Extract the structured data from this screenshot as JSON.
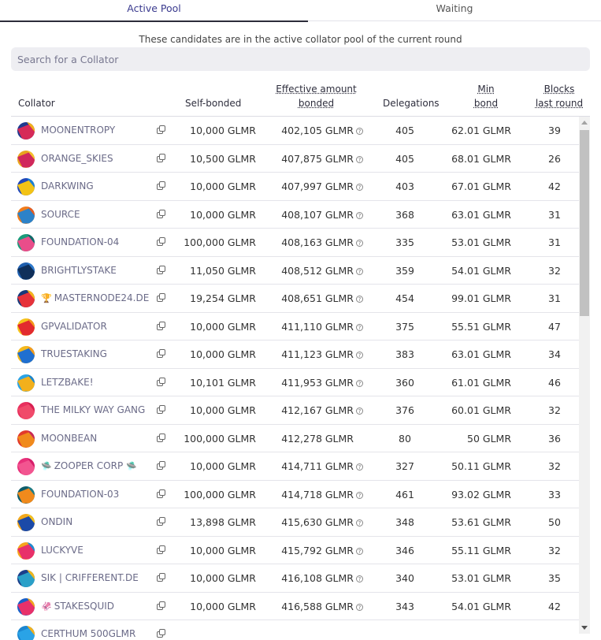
{
  "tabs": {
    "active": "Active Pool",
    "waiting": "Waiting"
  },
  "subtitle": "These candidates are in the active collator pool of the current round",
  "search": {
    "placeholder": "Search for a Collator",
    "value": ""
  },
  "columns": {
    "collator": "Collator",
    "self_bonded": "Self-bonded",
    "effective_1": "Effective amount",
    "effective_2": "bonded",
    "delegations": "Delegations",
    "min_1": "Min",
    "min_2": "bond",
    "blocks_1": "Blocks",
    "blocks_2": "last round"
  },
  "icons": {
    "copy": "copy-icon",
    "info": "info-icon",
    "scroll_up": "chevron-up-icon",
    "scroll_down": "chevron-down-icon"
  },
  "rows": [
    {
      "name": "MOONENTROPY",
      "self": "10,000 GLMR",
      "effective": "402,105 GLMR",
      "info": true,
      "delegations": "405",
      "min": "62.01 GLMR",
      "blocks": "39",
      "colors": [
        "#1f3a8f",
        "#d62a58",
        "#f0b21a"
      ]
    },
    {
      "name": "ORANGE_SKIES",
      "self": "10,500 GLMR",
      "effective": "407,875 GLMR",
      "info": true,
      "delegations": "405",
      "min": "68.01 GLMR",
      "blocks": "26",
      "colors": [
        "#e8a51e",
        "#d0285c",
        "#f5c52a"
      ]
    },
    {
      "name": "DARKWING",
      "self": "10,000 GLMR",
      "effective": "407,997 GLMR",
      "info": true,
      "delegations": "403",
      "min": "67.01 GLMR",
      "blocks": "42",
      "colors": [
        "#2148b8",
        "#f3c315",
        "#1a7fd6"
      ]
    },
    {
      "name": "SOURCE",
      "self": "10,000 GLMR",
      "effective": "408,107 GLMR",
      "info": true,
      "delegations": "368",
      "min": "63.01 GLMR",
      "blocks": "31",
      "colors": [
        "#f07c1b",
        "#2c82c9",
        "#e85d1f"
      ]
    },
    {
      "name": "FOUNDATION-04",
      "self": "100,000 GLMR",
      "effective": "408,163 GLMR",
      "info": true,
      "delegations": "335",
      "min": "53.01 GLMR",
      "blocks": "31",
      "colors": [
        "#1a9b7a",
        "#e94d8a",
        "#0f6c6a"
      ]
    },
    {
      "name": "BRIGHTLYSTAKE",
      "self": "11,050 GLMR",
      "effective": "408,512 GLMR",
      "info": true,
      "delegations": "359",
      "min": "54.01 GLMR",
      "blocks": "32",
      "colors": [
        "#1f5fae",
        "#0f2f5a",
        "#2e7bcf"
      ]
    },
    {
      "name": "MASTERNODE24.DE",
      "deco": "🏆",
      "self": "19,254 GLMR",
      "effective": "408,651 GLMR",
      "info": true,
      "delegations": "454",
      "min": "99.01 GLMR",
      "blocks": "31",
      "colors": [
        "#163a7a",
        "#e6323a",
        "#f4b71c"
      ]
    },
    {
      "name": "GPVALIDATOR",
      "self": "10,000 GLMR",
      "effective": "411,110 GLMR",
      "info": true,
      "delegations": "375",
      "min": "55.51 GLMR",
      "blocks": "47",
      "colors": [
        "#f5c31b",
        "#e22a2e",
        "#f39a1a"
      ]
    },
    {
      "name": "TRUESTAKING",
      "self": "10,000 GLMR",
      "effective": "411,123 GLMR",
      "info": true,
      "delegations": "383",
      "min": "63.01 GLMR",
      "blocks": "34",
      "colors": [
        "#f4b81c",
        "#1f6fd0",
        "#f59c1a"
      ]
    },
    {
      "name": "LETZBAKE!",
      "self": "10,101 GLMR",
      "effective": "411,953 GLMR",
      "info": true,
      "delegations": "360",
      "min": "61.01 GLMR",
      "blocks": "46",
      "colors": [
        "#2aa3e6",
        "#f2b01c",
        "#1b86d0"
      ]
    },
    {
      "name": "THE MILKY WAY GANG",
      "self": "10,000 GLMR",
      "effective": "412,167 GLMR",
      "info": true,
      "delegations": "376",
      "min": "60.01 GLMR",
      "blocks": "32",
      "colors": [
        "#e8305e",
        "#f04a6a",
        "#d81f52"
      ]
    },
    {
      "name": "MOONBEAN",
      "self": "100,000 GLMR",
      "effective": "412,278 GLMR",
      "info": false,
      "delegations": "80",
      "min": "50 GLMR",
      "blocks": "36",
      "colors": [
        "#e23a2a",
        "#f08a1c",
        "#c7285a"
      ]
    },
    {
      "name": "ZOOPER CORP",
      "deco": "🛸",
      "deco_after": "🛸",
      "self": "10,000 GLMR",
      "effective": "414,711 GLMR",
      "info": true,
      "delegations": "327",
      "min": "50.11 GLMR",
      "blocks": "32",
      "colors": [
        "#e8307a",
        "#f25590",
        "#d61e6a"
      ]
    },
    {
      "name": "FOUNDATION-03",
      "self": "100,000 GLMR",
      "effective": "414,718 GLMR",
      "info": true,
      "delegations": "461",
      "min": "93.02 GLMR",
      "blocks": "33",
      "colors": [
        "#0f5d6a",
        "#f08a1c",
        "#1a7c8a"
      ]
    },
    {
      "name": "ONDIN",
      "self": "13,898 GLMR",
      "effective": "415,630 GLMR",
      "info": true,
      "delegations": "348",
      "min": "53.61 GLMR",
      "blocks": "50",
      "colors": [
        "#f2a81c",
        "#1b4aa8",
        "#f5c01c"
      ]
    },
    {
      "name": "LUCKYVE",
      "self": "10,000 GLMR",
      "effective": "415,792 GLMR",
      "info": true,
      "delegations": "346",
      "min": "55.11 GLMR",
      "blocks": "32",
      "colors": [
        "#f5a41c",
        "#e8306a",
        "#1a8fd6"
      ]
    },
    {
      "name": "SIK | CRIFFERENT.DE",
      "self": "10,000 GLMR",
      "effective": "416,108 GLMR",
      "info": true,
      "delegations": "340",
      "min": "53.01 GLMR",
      "blocks": "35",
      "colors": [
        "#1b3f8a",
        "#2aa0c8",
        "#f2b71c"
      ]
    },
    {
      "name": "STAKESQUID",
      "deco": "🦑",
      "self": "10,000 GLMR",
      "effective": "416,588 GLMR",
      "info": true,
      "delegations": "343",
      "min": "54.01 GLMR",
      "blocks": "42",
      "colors": [
        "#1a5fc8",
        "#e8306a",
        "#f2a81c"
      ]
    },
    {
      "name": "CERTHUM 500GLMR",
      "self": "",
      "effective": "",
      "info": false,
      "delegations": "",
      "min": "",
      "blocks": "",
      "colors": [
        "#1b86d0",
        "#2aa3e6",
        "#f2b01c"
      ]
    }
  ]
}
